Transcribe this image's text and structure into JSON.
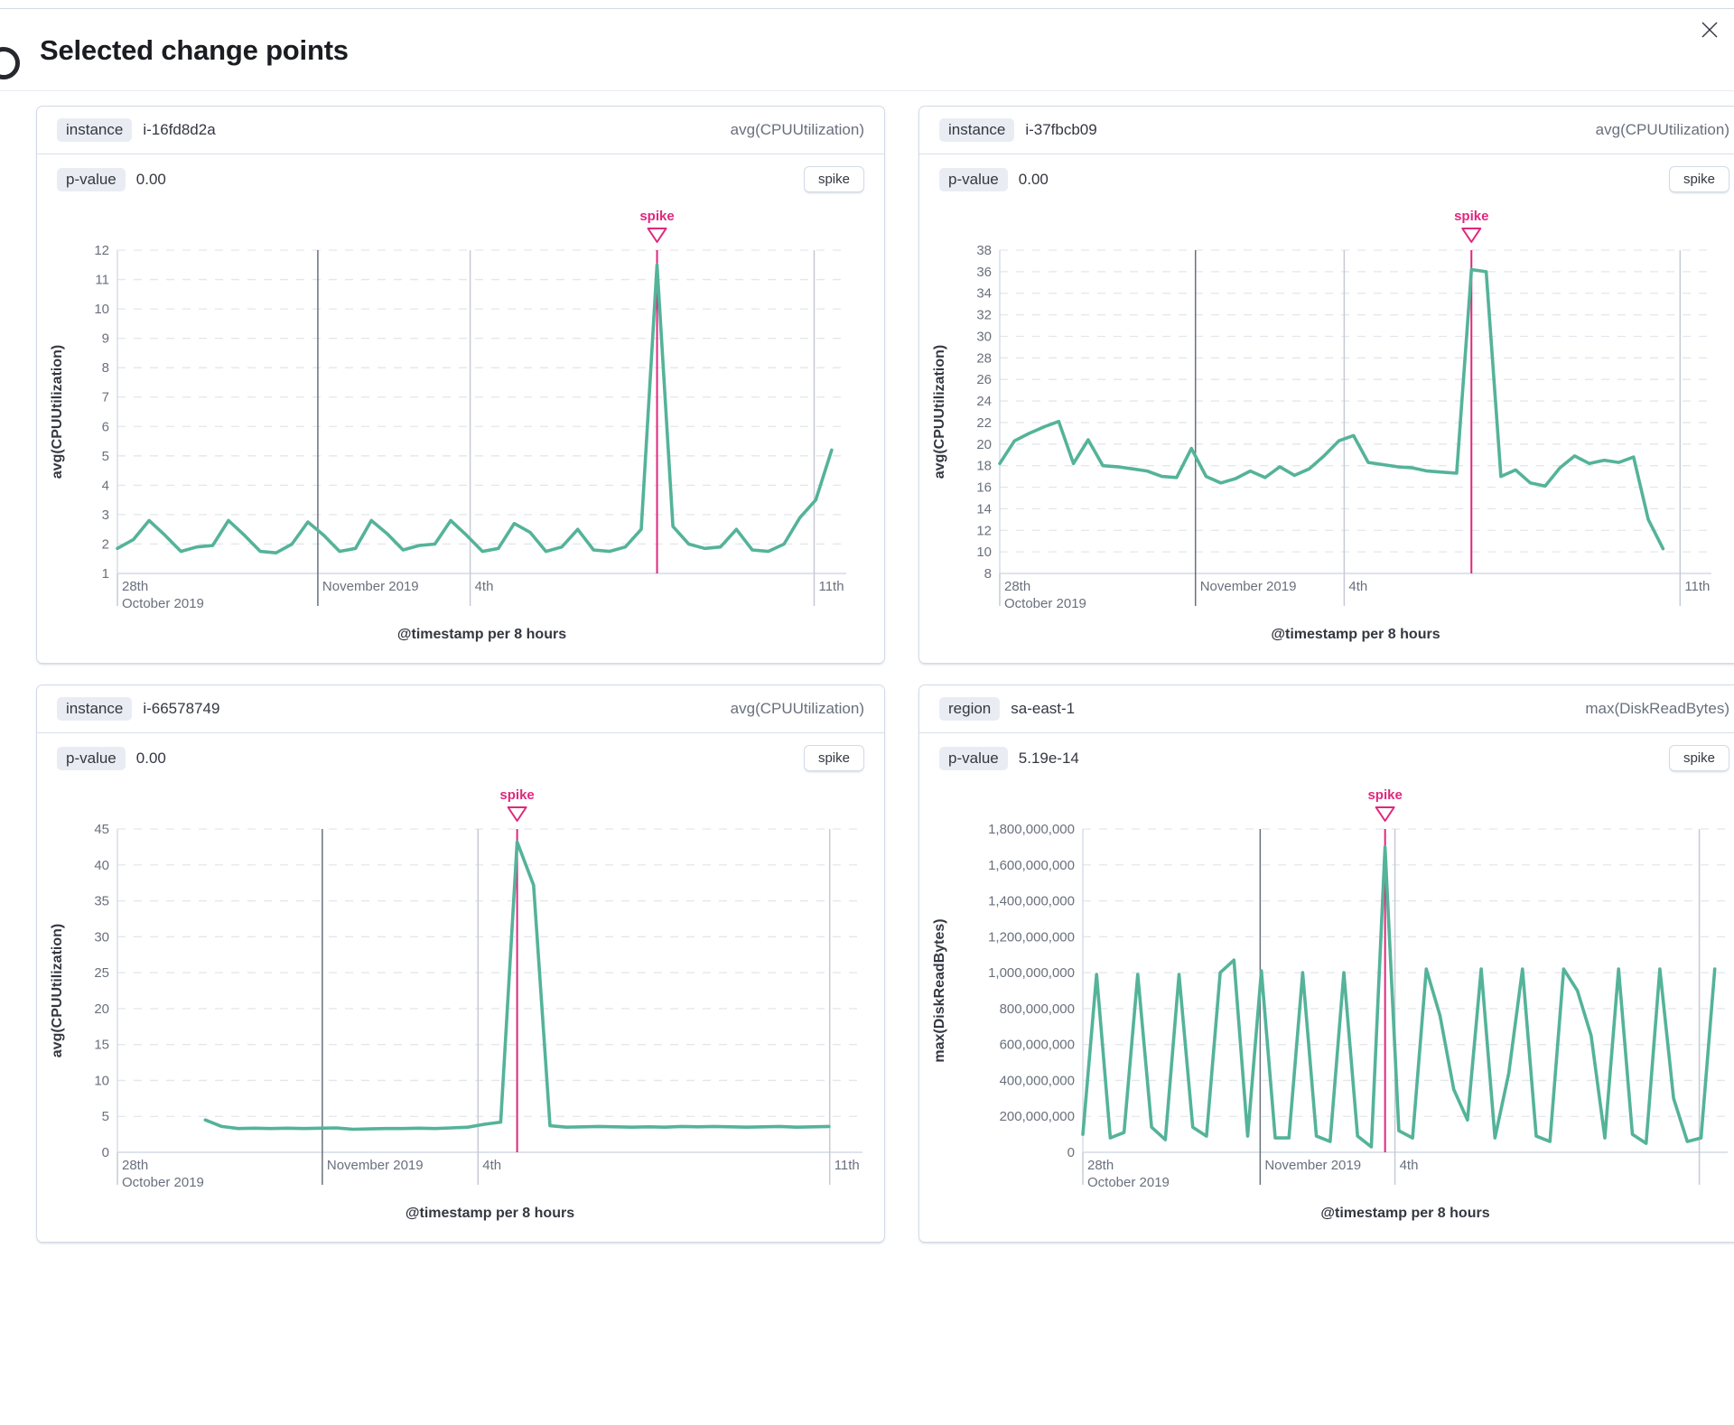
{
  "modal": {
    "title": "Selected change points",
    "close_icon": "close"
  },
  "colors": {
    "line_green": "#54B399",
    "spike_pink": "#E0277D",
    "h_grid": "#E3E6EE",
    "axis_line": "#D3DAE6",
    "v_gridline_major": "#69707D",
    "v_gridline_minor": "#C6CAD3",
    "tick_text": "#69707D",
    "badge_bg": "#E9EDF3"
  },
  "cards": [
    {
      "field_label": "instance",
      "field_value": "i-16fd8d2a",
      "metric": "avg(CPUUtilization)",
      "p_label": "p-value",
      "p_value": "0.00",
      "change_type": "spike",
      "chart_data": {
        "type": "line",
        "ylabel": "avg(CPUUtilization)",
        "xlabel": "@timestamp per 8 hours",
        "annotation": "spike",
        "ymin": 1,
        "ymax": 12,
        "ystep": 1,
        "yformat": "plain",
        "start_frac": 0.0,
        "end_frac": 0.98,
        "spike_index": 34,
        "values": [
          1.85,
          2.15,
          2.8,
          2.3,
          1.75,
          1.9,
          1.95,
          2.8,
          2.3,
          1.75,
          1.7,
          2.0,
          2.75,
          2.3,
          1.75,
          1.85,
          2.8,
          2.35,
          1.8,
          1.95,
          2.0,
          2.8,
          2.3,
          1.75,
          1.85,
          2.7,
          2.4,
          1.75,
          1.9,
          2.5,
          1.8,
          1.75,
          1.9,
          2.5,
          11.5,
          2.6,
          2.0,
          1.85,
          1.9,
          2.5,
          1.8,
          1.75,
          2.0,
          2.9,
          3.5,
          5.2
        ],
        "xticks": [
          {
            "frac": 0.0,
            "label": [
              "28th",
              "October 2019"
            ],
            "edge": true
          },
          {
            "frac": 0.275,
            "label": [
              "November 2019"
            ],
            "major": true
          },
          {
            "frac": 0.484,
            "label": [
              "4th"
            ]
          },
          {
            "frac": 0.956,
            "label": [
              "11th"
            ]
          }
        ]
      }
    },
    {
      "field_label": "instance",
      "field_value": "i-37fbcb09",
      "metric": "avg(CPUUtilization)",
      "p_label": "p-value",
      "p_value": "0.00",
      "change_type": "spike",
      "chart_data": {
        "type": "line",
        "ylabel": "avg(CPUUtilization)",
        "xlabel": "@timestamp per 8 hours",
        "annotation": "spike",
        "ymin": 8,
        "ymax": 38,
        "ystep": 2,
        "yformat": "plain",
        "start_frac": 0.0,
        "end_frac": 0.932,
        "spike_index": 32,
        "values": [
          18.2,
          20.3,
          21.0,
          21.6,
          22.1,
          18.2,
          20.4,
          18.0,
          17.9,
          17.7,
          17.5,
          17.0,
          16.9,
          19.6,
          17.0,
          16.4,
          16.8,
          17.5,
          16.9,
          17.9,
          17.1,
          17.7,
          18.9,
          20.3,
          20.8,
          18.3,
          18.1,
          17.9,
          17.8,
          17.5,
          17.4,
          17.3,
          36.2,
          36.0,
          17.0,
          17.6,
          16.4,
          16.1,
          17.8,
          18.9,
          18.2,
          18.5,
          18.3,
          18.8,
          13.0,
          10.3
        ],
        "xticks": [
          {
            "frac": 0.0,
            "label": [
              "28th",
              "October 2019"
            ],
            "edge": true
          },
          {
            "frac": 0.275,
            "label": [
              "November 2019"
            ],
            "major": true
          },
          {
            "frac": 0.484,
            "label": [
              "4th"
            ]
          },
          {
            "frac": 0.956,
            "label": [
              "11th"
            ]
          }
        ]
      }
    },
    {
      "field_label": "instance",
      "field_value": "i-66578749",
      "metric": "avg(CPUUtilization)",
      "p_label": "p-value",
      "p_value": "0.00",
      "change_type": "spike",
      "chart_data": {
        "type": "line",
        "ylabel": "avg(CPUUtilization)",
        "xlabel": "@timestamp per 8 hours",
        "annotation": "spike",
        "ymin": 0,
        "ymax": 45,
        "ystep": 5,
        "yformat": "plain",
        "start_frac": 0.118,
        "end_frac": 0.955,
        "spike_index": 19,
        "values": [
          4.5,
          3.6,
          3.3,
          3.35,
          3.3,
          3.35,
          3.3,
          3.35,
          3.4,
          3.2,
          3.25,
          3.3,
          3.3,
          3.35,
          3.3,
          3.4,
          3.5,
          3.9,
          4.2,
          43.2,
          37.2,
          3.7,
          3.5,
          3.55,
          3.6,
          3.55,
          3.5,
          3.55,
          3.5,
          3.6,
          3.55,
          3.6,
          3.55,
          3.5,
          3.55,
          3.6,
          3.5,
          3.55,
          3.6
        ],
        "xticks": [
          {
            "frac": 0.0,
            "label": [
              "28th",
              "October 2019"
            ],
            "edge": true
          },
          {
            "frac": 0.275,
            "label": [
              "November 2019"
            ],
            "major": true
          },
          {
            "frac": 0.484,
            "label": [
              "4th"
            ]
          },
          {
            "frac": 0.956,
            "label": [
              "11th"
            ]
          }
        ]
      }
    },
    {
      "field_label": "region",
      "field_value": "sa-east-1",
      "metric": "max(DiskReadBytes)",
      "p_label": "p-value",
      "p_value": "5.19e-14",
      "change_type": "spike",
      "chart_data": {
        "type": "line",
        "ylabel": "max(DiskReadBytes)",
        "xlabel": "@timestamp per 8 hours",
        "annotation": "spike",
        "ymin": 0,
        "ymax": 1800000000,
        "ystep": 200000000,
        "yformat": "grouped",
        "start_frac": 0.0,
        "end_frac": 0.98,
        "spike_index": 22,
        "values": [
          100000000,
          990000000,
          80000000,
          110000000,
          990000000,
          140000000,
          70000000,
          990000000,
          140000000,
          90000000,
          1000000000,
          1070000000,
          90000000,
          1010000000,
          80000000,
          80000000,
          1000000000,
          90000000,
          60000000,
          1000000000,
          90000000,
          30000000,
          1700000000,
          120000000,
          80000000,
          1020000000,
          760000000,
          350000000,
          180000000,
          1020000000,
          80000000,
          440000000,
          1020000000,
          90000000,
          60000000,
          1020000000,
          900000000,
          650000000,
          80000000,
          1020000000,
          100000000,
          50000000,
          1020000000,
          300000000,
          60000000,
          80000000,
          1020000000
        ],
        "xticks": [
          {
            "frac": 0.0,
            "label": [
              "28th",
              "October 2019"
            ],
            "edge": true
          },
          {
            "frac": 0.275,
            "label": [
              "November 2019"
            ],
            "major": true
          },
          {
            "frac": 0.484,
            "label": [
              "4th"
            ]
          },
          {
            "frac": 0.956,
            "label": []
          }
        ]
      }
    }
  ]
}
